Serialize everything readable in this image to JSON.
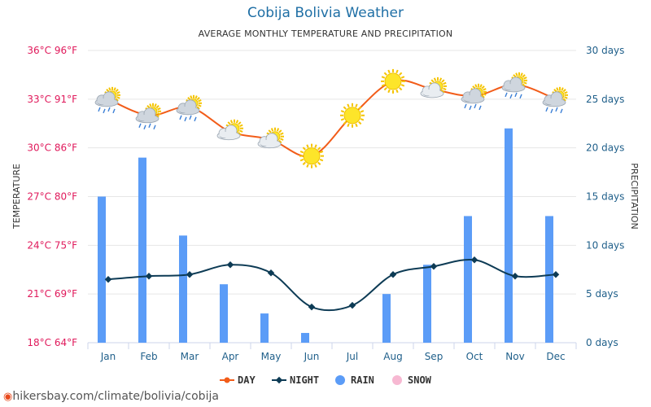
{
  "title": "Cobija Bolivia Weather",
  "subtitle": "AVERAGE MONTHLY TEMPERATURE AND PRECIPITATION",
  "credit": "hikersbay.com/climate/bolivia/cobija",
  "colors": {
    "day": "#f25c19",
    "night": "#0d3b55",
    "rain": "#5b9cf7",
    "snow": "#f7b8d2",
    "left_axis": "#e0195b",
    "right_axis": "#1f5f8a",
    "title": "#1f6fa5"
  },
  "chart_data": {
    "type": "line+bar",
    "categories": [
      "Jan",
      "Feb",
      "Mar",
      "Apr",
      "May",
      "Jun",
      "Jul",
      "Aug",
      "Sep",
      "Oct",
      "Nov",
      "Dec"
    ],
    "ylabel_left": "TEMPERATURE",
    "ylabel_right": "PRECIPITATION",
    "ylim_left": [
      18,
      36
    ],
    "ylim_right": [
      0,
      30
    ],
    "left_ticks": [
      "18°C 64°F",
      "21°C 69°F",
      "24°C 75°F",
      "27°C 80°F",
      "30°C 86°F",
      "33°C 91°F",
      "36°C 96°F"
    ],
    "right_ticks": [
      "0 days",
      "5 days",
      "10 days",
      "15 days",
      "20 days",
      "25 days",
      "30 days"
    ],
    "grid": true,
    "legend_position": "bottom",
    "series": [
      {
        "name": "DAY",
        "type": "line",
        "axis": "left",
        "values": [
          33,
          32,
          32.5,
          31,
          30.5,
          29.5,
          32,
          34.1,
          33.6,
          33.2,
          33.9,
          33
        ]
      },
      {
        "name": "NIGHT",
        "type": "line",
        "axis": "left",
        "values": [
          21.9,
          22.1,
          22.2,
          22.8,
          22.3,
          20.2,
          20.3,
          22.2,
          22.7,
          23.1,
          22.1,
          22.2
        ]
      },
      {
        "name": "RAIN",
        "type": "bar",
        "axis": "right",
        "values": [
          15,
          19,
          11,
          6,
          3,
          1,
          0,
          5,
          8,
          13,
          22,
          13
        ]
      },
      {
        "name": "SNOW",
        "type": "bar",
        "axis": "right",
        "values": [
          0,
          0,
          0,
          0,
          0,
          0,
          0,
          0,
          0,
          0,
          0,
          0
        ]
      }
    ],
    "weather_icons": [
      "rain-cloud-sun",
      "rain-cloud-sun",
      "rain-cloud-sun",
      "cloud-sun",
      "cloud-sun",
      "sun",
      "sun",
      "sun",
      "cloud-sun",
      "rain-cloud-sun",
      "rain-cloud-sun",
      "rain-cloud-sun"
    ]
  }
}
